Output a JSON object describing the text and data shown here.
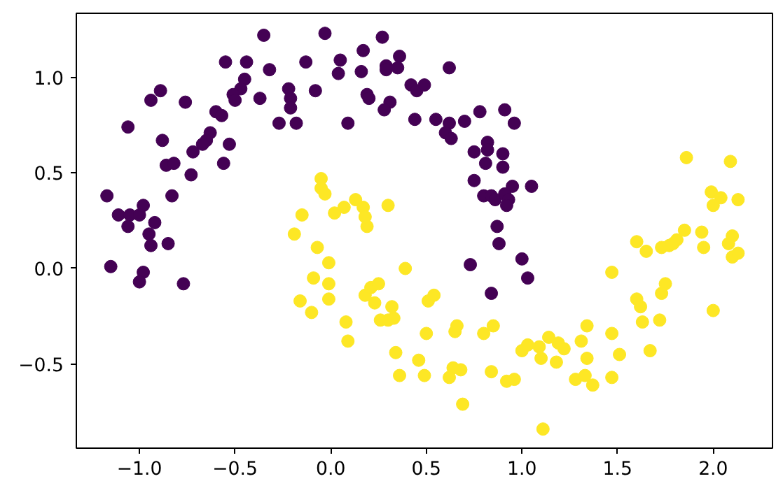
{
  "chart_data": {
    "type": "scatter",
    "marker": "circle",
    "xlim": [
      -1.33,
      2.31
    ],
    "ylim": [
      -0.94,
      1.335
    ],
    "xticks": [
      {
        "value": -1.0,
        "label": "−1.0"
      },
      {
        "value": -0.5,
        "label": "−0.5"
      },
      {
        "value": 0.0,
        "label": "0.0"
      },
      {
        "value": 0.5,
        "label": "0.5"
      },
      {
        "value": 1.0,
        "label": "1.0"
      },
      {
        "value": 1.5,
        "label": "1.5"
      },
      {
        "value": 2.0,
        "label": "2.0"
      }
    ],
    "yticks": [
      {
        "value": -0.5,
        "label": "−0.5"
      },
      {
        "value": 0.0,
        "label": "0.0"
      },
      {
        "value": 0.5,
        "label": "0.5"
      },
      {
        "value": 1.0,
        "label": "1.0"
      }
    ],
    "series": [
      {
        "color": "#440154",
        "x": [
          -0.35,
          -0.55,
          -0.44,
          -0.32,
          -0.13,
          -0.45,
          -0.47,
          -0.51,
          -0.5,
          -0.89,
          -0.94,
          -0.76,
          -0.37,
          -0.22,
          -0.21,
          -0.21,
          -0.27,
          -0.18,
          -1.06,
          -0.6,
          -0.57,
          -0.88,
          -0.63,
          -0.65,
          -0.67,
          -0.53,
          -0.72,
          -0.86,
          -0.82,
          -0.56,
          -0.73,
          -0.83,
          -1.17,
          -1.11,
          -1.05,
          -0.98,
          -1.0,
          -1.06,
          -0.92,
          -0.95,
          -0.03,
          0.27,
          0.17,
          0.05,
          0.04,
          0.16,
          0.29,
          0.29,
          0.36,
          0.35,
          0.62,
          -0.08,
          0.42,
          0.45,
          0.49,
          0.19,
          0.2,
          0.31,
          0.28,
          0.09,
          0.44,
          0.55,
          0.62,
          0.6,
          0.63,
          0.7,
          0.78,
          0.91,
          0.96,
          0.82,
          0.82,
          0.75,
          0.9,
          0.81,
          0.9,
          0.75,
          1.05,
          0.95,
          0.8,
          0.84,
          0.86,
          0.91,
          0.93,
          0.92,
          0.87,
          -0.94,
          -0.85,
          -1.15,
          -0.98,
          -1.0,
          -0.77,
          0.88,
          0.73,
          1.0,
          1.03,
          0.84
        ],
        "values": [
          1.22,
          1.08,
          1.08,
          1.04,
          1.08,
          0.99,
          0.94,
          0.91,
          0.88,
          0.93,
          0.88,
          0.87,
          0.89,
          0.94,
          0.89,
          0.84,
          0.76,
          0.76,
          0.74,
          0.82,
          0.8,
          0.67,
          0.71,
          0.67,
          0.65,
          0.65,
          0.61,
          0.54,
          0.55,
          0.55,
          0.49,
          0.38,
          0.38,
          0.28,
          0.28,
          0.33,
          0.28,
          0.22,
          0.24,
          0.18,
          1.23,
          1.21,
          1.14,
          1.09,
          1.02,
          1.03,
          1.06,
          1.04,
          1.11,
          1.05,
          1.05,
          0.93,
          0.96,
          0.93,
          0.96,
          0.91,
          0.89,
          0.87,
          0.83,
          0.76,
          0.78,
          0.78,
          0.76,
          0.71,
          0.68,
          0.77,
          0.82,
          0.83,
          0.76,
          0.66,
          0.62,
          0.61,
          0.6,
          0.55,
          0.53,
          0.46,
          0.43,
          0.43,
          0.38,
          0.38,
          0.36,
          0.39,
          0.36,
          0.33,
          0.22,
          0.12,
          0.13,
          0.01,
          -0.02,
          -0.07,
          -0.08,
          0.13,
          0.02,
          0.05,
          -0.05,
          -0.13
        ]
      },
      {
        "color": "#fde725",
        "x": [
          -0.15,
          -0.19,
          1.86,
          2.09,
          1.99,
          2.04,
          2.0,
          2.13,
          1.85,
          1.94,
          2.1,
          1.6,
          1.65,
          1.73,
          1.77,
          1.79,
          1.81,
          1.95,
          2.08,
          2.1,
          2.13,
          1.47,
          1.75,
          1.73,
          1.6,
          1.62,
          1.63,
          1.72,
          2.0,
          1.34,
          1.47,
          1.31,
          1.14,
          1.09,
          1.19,
          1.22,
          1.1,
          1.18,
          1.34,
          1.51,
          1.67,
          1.28,
          1.33,
          1.37,
          1.47,
          1.11,
          0.19,
          -0.07,
          -0.01,
          -0.09,
          -0.01,
          -0.01,
          -0.16,
          -0.1,
          0.08,
          0.09,
          0.39,
          0.18,
          0.21,
          0.25,
          0.23,
          0.32,
          0.26,
          0.3,
          0.33,
          0.34,
          0.36,
          0.51,
          0.54,
          0.5,
          0.46,
          0.49,
          0.66,
          0.65,
          0.64,
          0.62,
          0.68,
          0.69,
          0.8,
          0.85,
          0.84,
          0.92,
          0.96,
          1.0,
          1.03,
          -0.05,
          -0.05,
          -0.03,
          0.02,
          0.07,
          0.13,
          0.17,
          0.18,
          0.3
        ],
        "values": [
          0.28,
          0.18,
          0.58,
          0.56,
          0.4,
          0.37,
          0.33,
          0.36,
          0.2,
          0.19,
          0.17,
          0.14,
          0.09,
          0.11,
          0.12,
          0.13,
          0.15,
          0.11,
          0.13,
          0.06,
          0.08,
          -0.02,
          -0.08,
          -0.13,
          -0.16,
          -0.2,
          -0.28,
          -0.27,
          -0.22,
          -0.3,
          -0.34,
          -0.38,
          -0.36,
          -0.41,
          -0.39,
          -0.42,
          -0.47,
          -0.49,
          -0.47,
          -0.45,
          -0.43,
          -0.58,
          -0.56,
          -0.61,
          -0.57,
          -0.84,
          0.22,
          0.11,
          0.03,
          -0.05,
          -0.08,
          -0.16,
          -0.17,
          -0.23,
          -0.28,
          -0.38,
          0.0,
          -0.14,
          -0.1,
          -0.08,
          -0.18,
          -0.2,
          -0.27,
          -0.27,
          -0.26,
          -0.44,
          -0.56,
          -0.17,
          -0.14,
          -0.34,
          -0.48,
          -0.56,
          -0.3,
          -0.33,
          -0.52,
          -0.57,
          -0.53,
          -0.71,
          -0.34,
          -0.3,
          -0.54,
          -0.59,
          -0.58,
          -0.43,
          -0.4,
          0.47,
          0.42,
          0.39,
          0.29,
          0.32,
          0.36,
          0.32,
          0.27,
          0.33
        ]
      }
    ]
  }
}
